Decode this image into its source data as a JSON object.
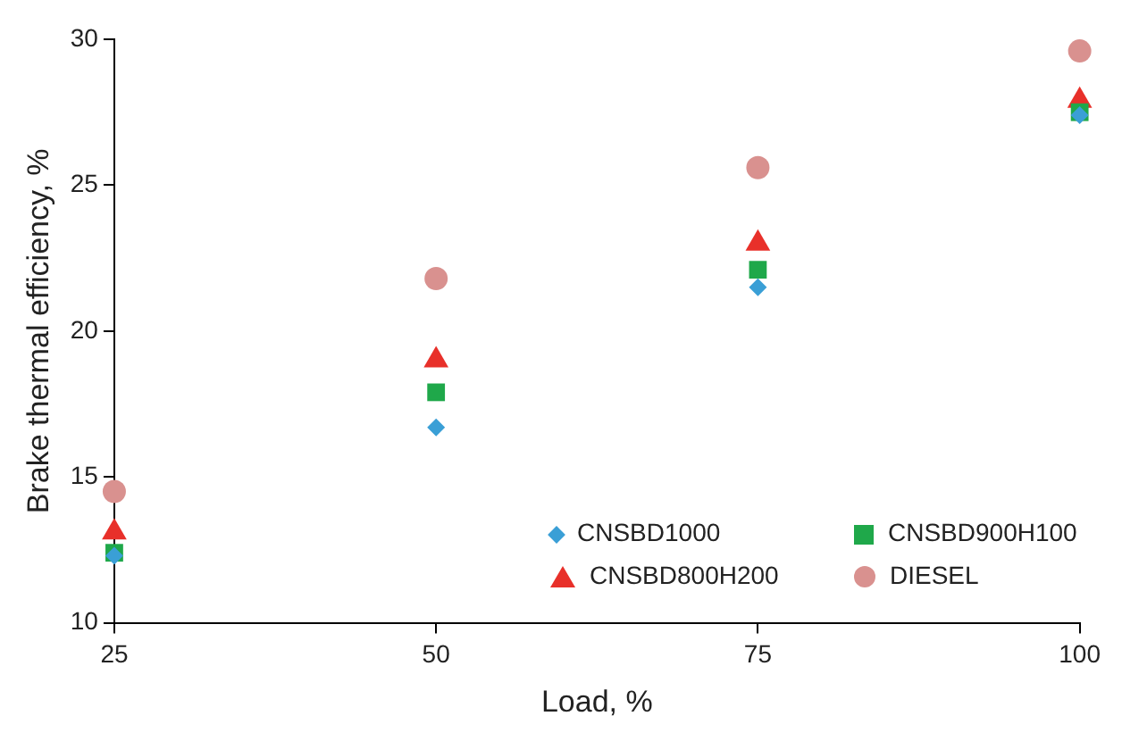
{
  "chart_data": {
    "type": "scatter",
    "xlabel": "Load, %",
    "ylabel": "Brake thermal efficiency, %",
    "x": [
      25,
      50,
      75,
      100
    ],
    "series": [
      {
        "name": "CNSBD1000",
        "color": "#3a9fd6",
        "marker": "diamond",
        "values": [
          12.3,
          16.7,
          21.5,
          27.4
        ]
      },
      {
        "name": "CNSBD900H100",
        "color": "#1fa84a",
        "marker": "square",
        "values": [
          12.4,
          17.9,
          22.1,
          27.5
        ]
      },
      {
        "name": "CNSBD800H200",
        "color": "#e8302a",
        "marker": "triangle",
        "values": [
          13.1,
          19.0,
          23.0,
          27.9
        ]
      },
      {
        "name": "DIESEL",
        "color": "#d9918f",
        "marker": "circle",
        "values": [
          14.5,
          21.8,
          25.6,
          29.6
        ]
      }
    ],
    "xlim": [
      25,
      100
    ],
    "xticks": [
      25,
      50,
      75,
      100
    ],
    "ylim": [
      10,
      30
    ],
    "yticks": [
      10,
      15,
      20,
      25,
      30
    ],
    "grid": false,
    "legend": "bottom right"
  }
}
